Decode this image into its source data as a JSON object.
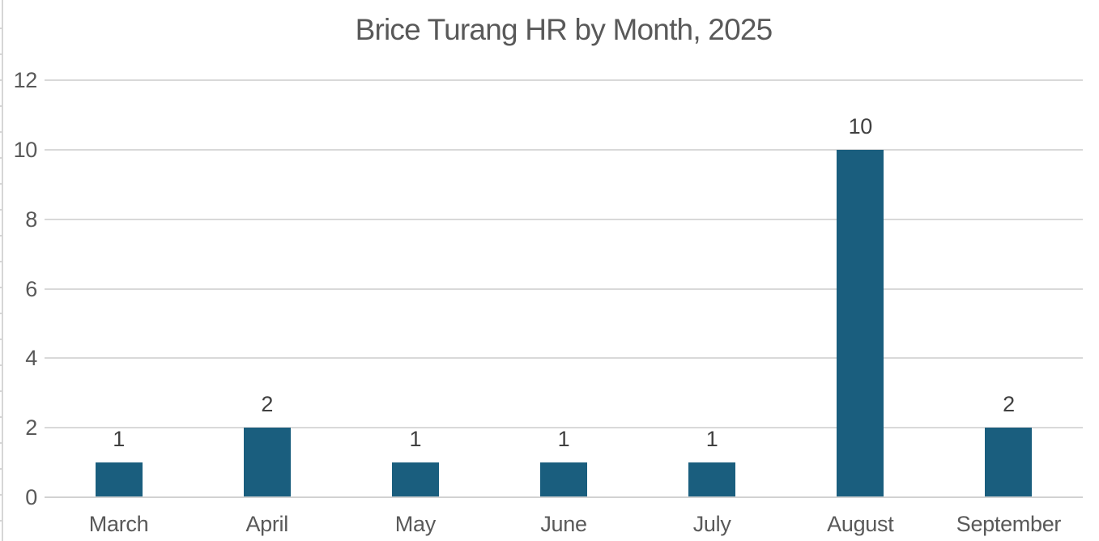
{
  "chart_data": {
    "type": "bar",
    "title": "Brice Turang HR by Month, 2025",
    "categories": [
      "March",
      "April",
      "May",
      "June",
      "July",
      "August",
      "September"
    ],
    "values": [
      1,
      2,
      1,
      1,
      1,
      10,
      2
    ],
    "data_labels": [
      "1",
      "2",
      "1",
      "1",
      "1",
      "10",
      "2"
    ],
    "xlabel": "",
    "ylabel": "",
    "ylim": [
      0,
      12
    ],
    "yticks": [
      0,
      2,
      4,
      6,
      8,
      10,
      12
    ],
    "grid": "horizontal",
    "legend_position": "none",
    "colors": {
      "bar": "#1A5E7E",
      "gridline": "#D9D9D9",
      "axis_line": "#D2D2D2",
      "title_text": "#595959",
      "tick_text": "#595959",
      "data_label_text": "#404040",
      "background": "#FFFFFF",
      "edge_sliver": "#D6D6D6"
    }
  }
}
